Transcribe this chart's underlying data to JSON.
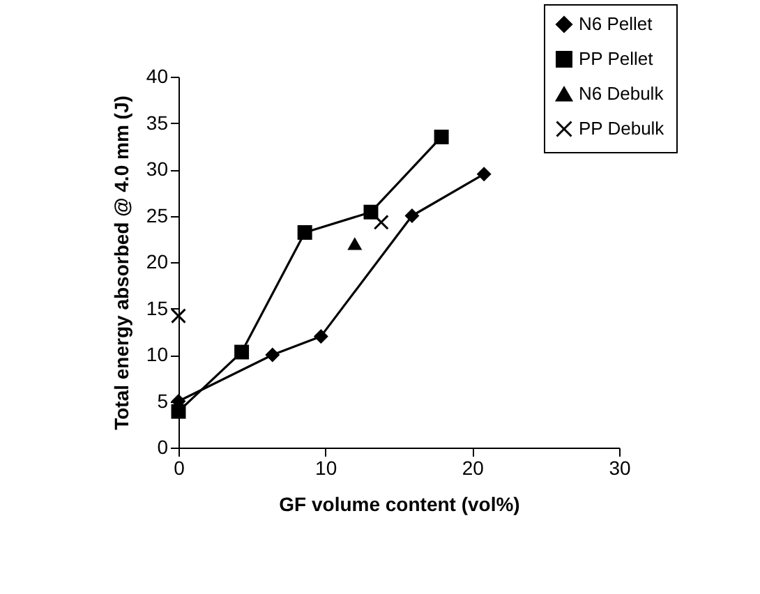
{
  "chart_data": {
    "type": "line",
    "xlabel": "GF volume content (vol%)",
    "ylabel": "Total energy absorbed @ 4.0 mm (J)",
    "xlim": [
      0,
      30
    ],
    "xticks": [
      0,
      10,
      20,
      30
    ],
    "ylim": [
      0,
      40
    ],
    "yticks": [
      0,
      5,
      10,
      15,
      20,
      25,
      30,
      35,
      40
    ],
    "grid": false,
    "legend": "top right",
    "series": [
      {
        "name": "N6 Pellet",
        "marker": "diamond",
        "color": "#000000",
        "x": [
          0,
          6.4,
          9.7,
          15.9,
          20.8
        ],
        "values": [
          5,
          10,
          12,
          25,
          29.5
        ]
      },
      {
        "name": "PP Pellet",
        "marker": "square",
        "color": "#000000",
        "x": [
          0,
          4.3,
          8.6,
          13.1,
          17.9
        ],
        "values": [
          3.9,
          10.3,
          23.2,
          25.4,
          33.5
        ]
      },
      {
        "name": "N6 Debulk",
        "type": "scatter",
        "marker": "triangle",
        "color": "#000000",
        "x": [
          12
        ],
        "values": [
          22
        ]
      },
      {
        "name": "PP Debulk",
        "type": "scatter",
        "marker": "cross",
        "color": "#000000",
        "x": [
          0,
          13.8
        ],
        "values": [
          14.2,
          24.3
        ]
      }
    ]
  }
}
